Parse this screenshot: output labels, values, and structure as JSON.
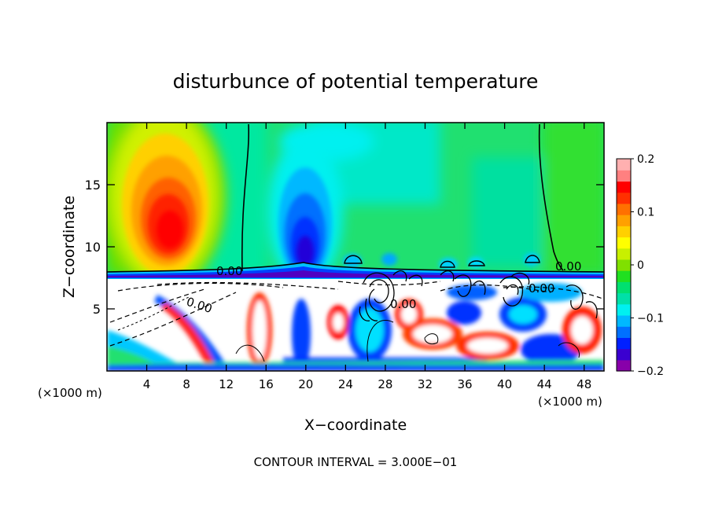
{
  "chart_data": {
    "type": "heatmap",
    "title": "disturbunce of potential temperature",
    "xlabel": "X−coordinate",
    "ylabel": "Z−coordinate",
    "x_unit_left": "(×1000 m)",
    "x_unit_right": "(×1000 m)",
    "footer": "CONTOUR INTERVAL = 3.000E−01",
    "xlim": [
      0,
      50
    ],
    "ylim": [
      0,
      20
    ],
    "x_ticks": [
      4,
      8,
      12,
      16,
      20,
      24,
      28,
      32,
      36,
      40,
      44,
      48
    ],
    "y_ticks": [
      5,
      10,
      15
    ],
    "colorbar": {
      "range": [
        -0.2,
        0.2
      ],
      "ticks": [
        0.2,
        0.1,
        0,
        -0.1,
        -0.2
      ],
      "tick_labels": [
        "0.2",
        "0.1",
        "0",
        "−0.1",
        "−0.2"
      ],
      "colors": [
        "#8800aa",
        "#3a00d0",
        "#0020ff",
        "#0070ff",
        "#00b8ff",
        "#00f0f0",
        "#00e0a8",
        "#00e070",
        "#20e020",
        "#80e000",
        "#c8f000",
        "#ffff00",
        "#ffd000",
        "#ffa000",
        "#ff7000",
        "#ff3000",
        "#ff0000",
        "#ff8080",
        "#ffb0b0"
      ]
    },
    "contour_labels": [
      {
        "x": 13.0,
        "z": 8.1,
        "text": "0.00"
      },
      {
        "x": 7.8,
        "z": 5.9,
        "text": "0.00"
      },
      {
        "x": 30.0,
        "z": 5.3,
        "text": "0.00"
      },
      {
        "x": 46.0,
        "z": 8.3,
        "text": "0.00"
      },
      {
        "x": 42.5,
        "z": 6.7,
        "text": "0.00"
      }
    ],
    "features": [
      {
        "kind": "warm_anomaly",
        "x": 5.5,
        "z": 11.5,
        "value": 0.15
      },
      {
        "kind": "cold_anomaly",
        "x": 19.5,
        "z": 9.6,
        "value": -0.18
      },
      {
        "kind": "stable_layer",
        "z": 7.7
      },
      {
        "kind": "turbulent_layer",
        "z_range": [
          0,
          7.5
        ]
      }
    ]
  }
}
